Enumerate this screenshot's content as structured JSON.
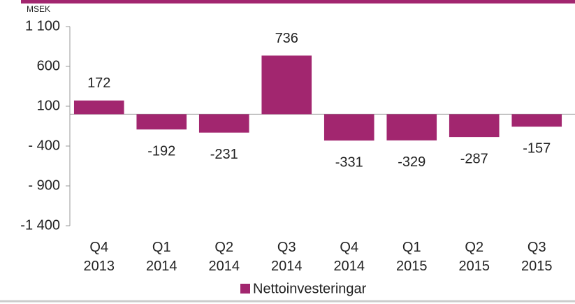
{
  "chart_data": {
    "type": "bar",
    "y_unit": "MSEK",
    "categories": [
      "Q4 2013",
      "Q1 2014",
      "Q2 2014",
      "Q3 2014",
      "Q4 2014",
      "Q1 2015",
      "Q2 2015",
      "Q3 2015"
    ],
    "series": [
      {
        "name": "Nettoinvesteringar",
        "color": "#a2266f",
        "values": [
          172,
          -192,
          -231,
          736,
          -331,
          -329,
          -287,
          -157
        ]
      }
    ],
    "ylim": [
      -1400,
      1100
    ],
    "yticks": [
      {
        "value": -1400,
        "label": "-1 400"
      },
      {
        "value": -900,
        "label": "- 900"
      },
      {
        "value": -400,
        "label": "- 400"
      },
      100,
      600,
      {
        "value": 1100,
        "label": "1 100"
      }
    ],
    "grid": false,
    "legend": "bottom"
  }
}
